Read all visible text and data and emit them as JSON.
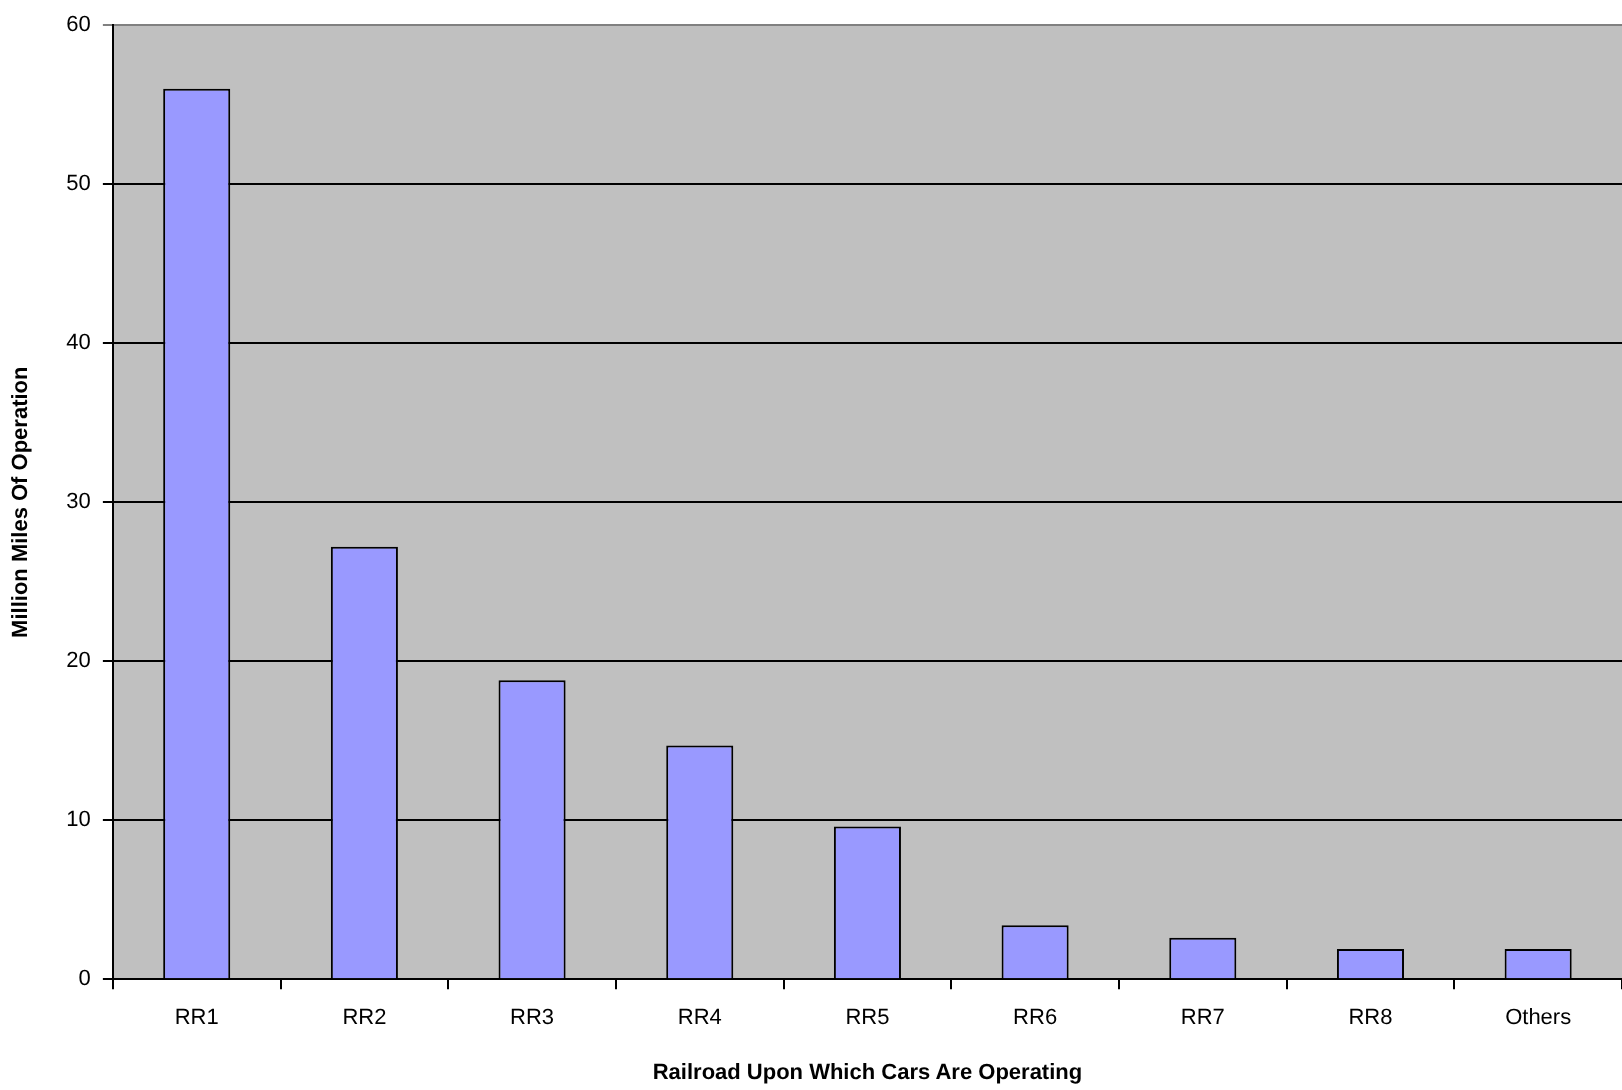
{
  "chart_data": {
    "type": "bar",
    "xlabel": "Railroad Upon Which Cars Are Operating",
    "ylabel": "Million Miles Of Operation",
    "categories": [
      "RR1",
      "RR2",
      "RR3",
      "RR4",
      "RR5",
      "RR6",
      "RR7",
      "RR8",
      "Others"
    ],
    "values": [
      56,
      27.2,
      18.8,
      14.7,
      9.6,
      3.4,
      2.6,
      1.9,
      1.9
    ],
    "color": "#9999ff",
    "ylim": [
      0,
      60
    ],
    "yticks": [
      0,
      10,
      20,
      30,
      40,
      50,
      60
    ],
    "grid": "y",
    "legend": false
  }
}
